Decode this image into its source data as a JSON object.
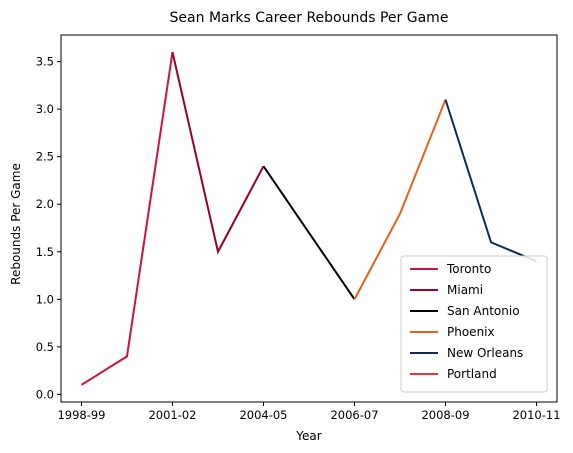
{
  "chart_data": {
    "type": "line",
    "title": "Sean Marks Career Rebounds Per Game",
    "xlabel": "Year",
    "ylabel": "Rebounds Per Game",
    "x_tick_labels": [
      "1998-99",
      "2001-02",
      "2004-05",
      "2006-07",
      "2008-09",
      "2010-11"
    ],
    "x_tick_positions": [
      0,
      2,
      4,
      6,
      8,
      10
    ],
    "xlim": [
      -0.45,
      10.45
    ],
    "ylim": [
      -0.08,
      3.78
    ],
    "y_ticks": [
      0.0,
      0.5,
      1.0,
      1.5,
      2.0,
      2.5,
      3.0,
      3.5
    ],
    "y_tick_labels": [
      "0.0",
      "0.5",
      "1.0",
      "1.5",
      "2.0",
      "2.5",
      "3.0",
      "3.5"
    ],
    "legend_position": "lower-right",
    "series": [
      {
        "name": "Toronto",
        "color": "#ce1141",
        "x": [
          0,
          1,
          2
        ],
        "y": [
          0.1,
          0.4,
          3.6
        ]
      },
      {
        "name": "Miami",
        "color": "#98002e",
        "x": [
          2,
          3,
          4
        ],
        "y": [
          3.6,
          1.5,
          2.4
        ]
      },
      {
        "name": "San Antonio",
        "color": "#000000",
        "x": [
          4,
          5,
          6
        ],
        "y": [
          2.4,
          1.7,
          1.0
        ]
      },
      {
        "name": "Phoenix",
        "color": "#e56020",
        "x": [
          6,
          7,
          8
        ],
        "y": [
          1.0,
          1.9,
          3.1
        ]
      },
      {
        "name": "New Orleans",
        "color": "#0c2c56",
        "x": [
          8,
          9,
          10
        ],
        "y": [
          3.1,
          1.6,
          1.4
        ]
      },
      {
        "name": "Portland",
        "color": "#e03a3e",
        "x": [],
        "y": []
      }
    ]
  }
}
